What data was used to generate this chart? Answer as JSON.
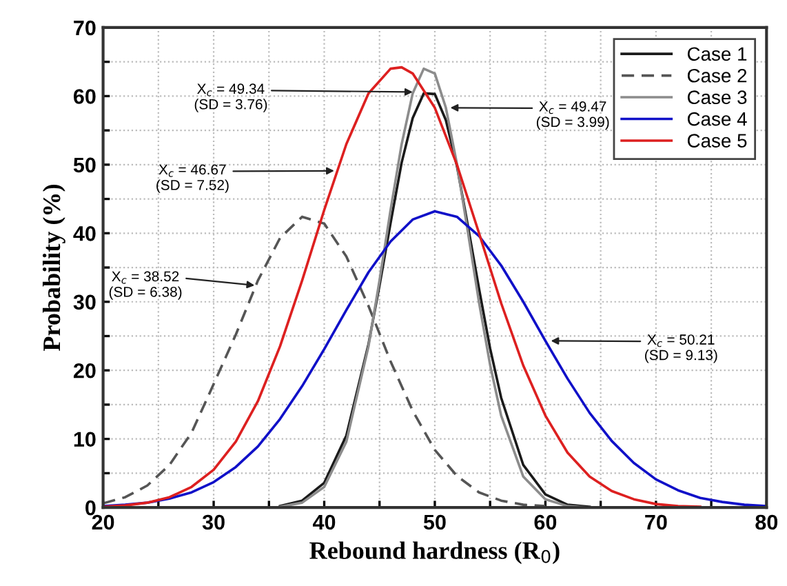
{
  "chart_data": {
    "type": "line",
    "xlabel": "Rebound hardness (R$_{0}$)",
    "ylabel": "Probability (%)",
    "xlim": [
      20,
      80
    ],
    "ylim": [
      0,
      70
    ],
    "xticks": [
      20,
      {
        "value": 25,
        "label": null
      },
      30,
      {
        "value": 35,
        "label": null
      },
      40,
      {
        "value": 45,
        "label": null
      },
      50,
      {
        "value": 55,
        "label": null
      },
      60,
      {
        "value": 65,
        "label": null
      },
      70,
      {
        "value": 75,
        "label": null
      },
      80
    ],
    "yticks": [
      0,
      {
        "value": 5,
        "label": null
      },
      10,
      {
        "value": 15,
        "label": null
      },
      20,
      {
        "value": 25,
        "label": null
      },
      30,
      {
        "value": 35,
        "label": null
      },
      40,
      {
        "value": 45,
        "label": null
      },
      50,
      {
        "value": 55,
        "label": null
      },
      60,
      {
        "value": 65,
        "label": null
      },
      70
    ],
    "grid": true,
    "legend": "top right",
    "marker": "none",
    "series": [
      {
        "name": "Case 1",
        "color": "#1a1a1a",
        "line_style": "solid",
        "x": [
          36,
          38,
          40,
          42,
          44,
          45,
          46,
          47,
          48,
          49,
          50,
          51,
          52,
          53,
          54,
          55,
          56,
          58,
          60,
          62,
          64
        ],
        "values": [
          0.2,
          1.0,
          3.6,
          10.5,
          23.8,
          32.4,
          41.5,
          50.3,
          56.8,
          60.4,
          60.3,
          56.5,
          49.8,
          41.0,
          31.9,
          23.2,
          16.0,
          6.2,
          1.9,
          0.4,
          0.1
        ]
      },
      {
        "name": "Case 2",
        "color": "#555555",
        "line_style": "dashed",
        "x": [
          20,
          22,
          24,
          26,
          28,
          30,
          32,
          34,
          36,
          38,
          40,
          42,
          44,
          46,
          48,
          50,
          52,
          54,
          56,
          58,
          60
        ],
        "values": [
          0.6,
          1.5,
          3.2,
          6.2,
          10.9,
          18.0,
          25.2,
          33.1,
          39.3,
          42.4,
          41.4,
          36.6,
          29.4,
          21.3,
          14.1,
          8.4,
          4.6,
          2.2,
          1.0,
          0.4,
          0.2
        ]
      },
      {
        "name": "Case 3",
        "color": "#8c8c8c",
        "line_style": "solid",
        "x": [
          36,
          38,
          40,
          42,
          44,
          45,
          46,
          47,
          48,
          49,
          50,
          51,
          52,
          53,
          54,
          55,
          56,
          58,
          60,
          62,
          64
        ],
        "values": [
          0.1,
          0.7,
          3.0,
          9.6,
          23.5,
          33.1,
          43.4,
          53.0,
          60.4,
          64.0,
          63.3,
          58.3,
          50.1,
          40.1,
          29.9,
          20.8,
          13.4,
          4.5,
          1.2,
          0.2,
          0.0
        ]
      },
      {
        "name": "Case 4",
        "color": "#1010c8",
        "line_style": "solid",
        "x": [
          20,
          22,
          24,
          26,
          28,
          30,
          32,
          34,
          36,
          38,
          40,
          42,
          44,
          46,
          48,
          50,
          52,
          54,
          56,
          58,
          60,
          62,
          64,
          66,
          68,
          70,
          72,
          74,
          76,
          78,
          80
        ],
        "values": [
          0.2,
          0.4,
          0.7,
          1.3,
          2.2,
          3.7,
          5.9,
          8.9,
          12.9,
          17.7,
          23.1,
          28.8,
          34.3,
          38.8,
          42.0,
          43.2,
          42.4,
          39.6,
          35.3,
          30.0,
          24.3,
          18.8,
          13.8,
          9.7,
          6.5,
          4.1,
          2.5,
          1.4,
          0.8,
          0.4,
          0.2
        ]
      },
      {
        "name": "Case 5",
        "color": "#dd2020",
        "line_style": "solid",
        "x": [
          20,
          22,
          24,
          26,
          28,
          30,
          32,
          34,
          36,
          38,
          40,
          42,
          44,
          46,
          47,
          48,
          50,
          52,
          54,
          56,
          58,
          60,
          62,
          64,
          66,
          68,
          70,
          72,
          74
        ],
        "values": [
          0.1,
          0.3,
          0.7,
          1.5,
          3.0,
          5.5,
          9.6,
          15.5,
          23.5,
          33.1,
          43.4,
          53.0,
          60.4,
          64.0,
          64.2,
          63.3,
          58.3,
          50.0,
          40.0,
          29.8,
          20.7,
          13.4,
          8.0,
          4.5,
          2.4,
          1.2,
          0.5,
          0.2,
          0.1
        ]
      }
    ],
    "annotations": [
      {
        "text": "X$_{c}$ = 49.34\n(SD = 3.76)",
        "x": 48.0,
        "y": 60.6
      },
      {
        "text": "X$_{c}$ = 49.47\n(SD = 3.99)",
        "x": 51.4,
        "y": 58.3
      },
      {
        "text": "X$_{c}$ = 46.67\n(SD = 7.52)",
        "x": 40.9,
        "y": 49.1
      },
      {
        "text": "X$_{c}$ = 38.52\n(SD = 6.38)",
        "x": 33.7,
        "y": 32.4
      },
      {
        "text": "X$_{c}$ = 50.21\n(SD = 9.13)",
        "x": 60.5,
        "y": 24.3
      }
    ]
  }
}
